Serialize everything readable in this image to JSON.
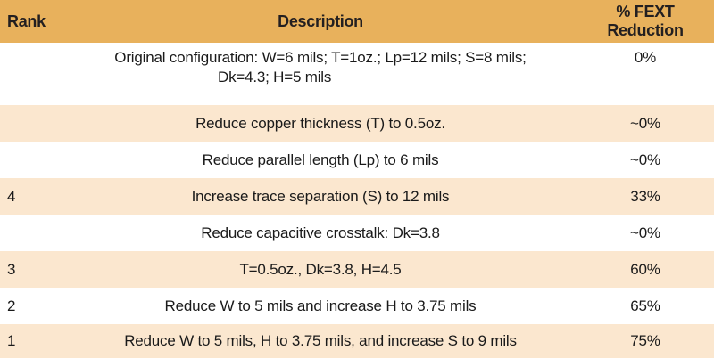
{
  "header": {
    "rank": "Rank",
    "description": "Description",
    "fext": "% FEXT Reduction"
  },
  "rows": [
    {
      "rank": "",
      "description": "Original configuration: W=6 mils; T=1oz.; Lp=12 mils; S=8 mils;",
      "description_cont": "Dk=4.3; H=5 mils",
      "fext": "0%"
    },
    {
      "rank": "",
      "description": "Reduce copper thickness (T) to 0.5oz.",
      "fext": "~0%"
    },
    {
      "rank": "",
      "description": "Reduce parallel length (Lp) to 6 mils",
      "fext": "~0%"
    },
    {
      "rank": "4",
      "description": "Increase trace separation (S) to 12 mils",
      "fext": "33%"
    },
    {
      "rank": "",
      "description": "Reduce capacitive crosstalk: Dk=3.8",
      "fext": "~0%"
    },
    {
      "rank": "3",
      "description": "T=0.5oz., Dk=3.8, H=4.5",
      "fext": "60%"
    },
    {
      "rank": "2",
      "description": "Reduce W to 5 mils and increase H to 3.75 mils",
      "fext": "65%"
    },
    {
      "rank": "1",
      "description": "Reduce W to 5 mils, H to 3.75 mils, and increase S to 9 mils",
      "fext": "75%"
    }
  ],
  "colors": {
    "header_bg": "#e8b15c",
    "stripe_bg": "#fbe7cf",
    "plain_bg": "#ffffff"
  }
}
